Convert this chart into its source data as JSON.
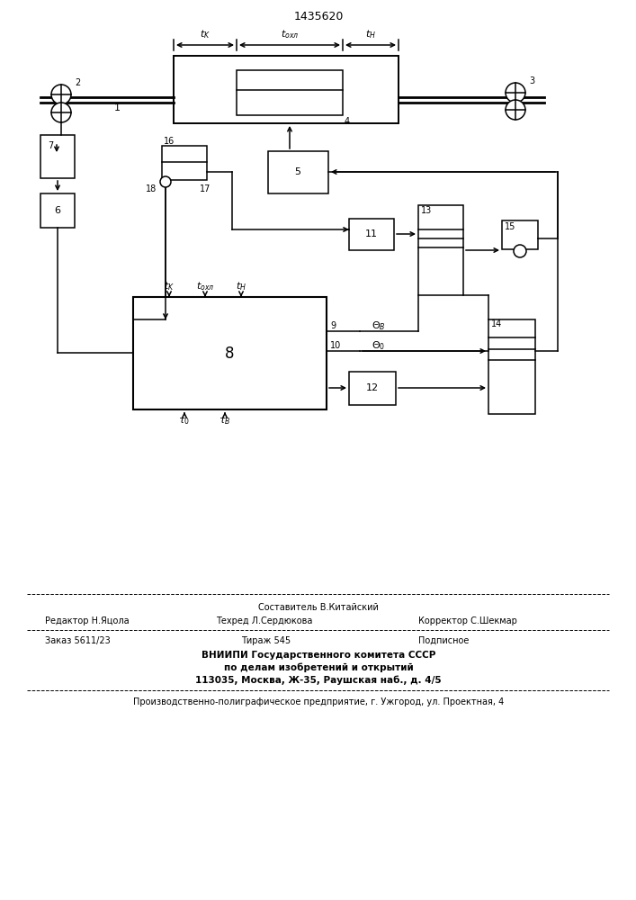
{
  "title": "1435620",
  "bg_color": "#ffffff",
  "lc": "#000000",
  "sestavitel": "Составитель В.Китайский",
  "editor": "Редактор Н.Яцола",
  "tehred": "Техред Л.Сердюкова",
  "korrektor": "Корректор С.Шекмар",
  "zakaz": "Заказ 5611/23",
  "tirazh": "Тираж 545",
  "podpisnoe": "Подписное",
  "vniip1": "ВНИИПИ Государственного комитета СССР",
  "vniip2": "по делам изобретений и открытий",
  "vniip3": "113035, Москва, Ж-35, Раушская наб., д. 4/5",
  "production": "Производственно-полиграфическое предприятие, г. Ужгород, ул. Проектная, 4"
}
